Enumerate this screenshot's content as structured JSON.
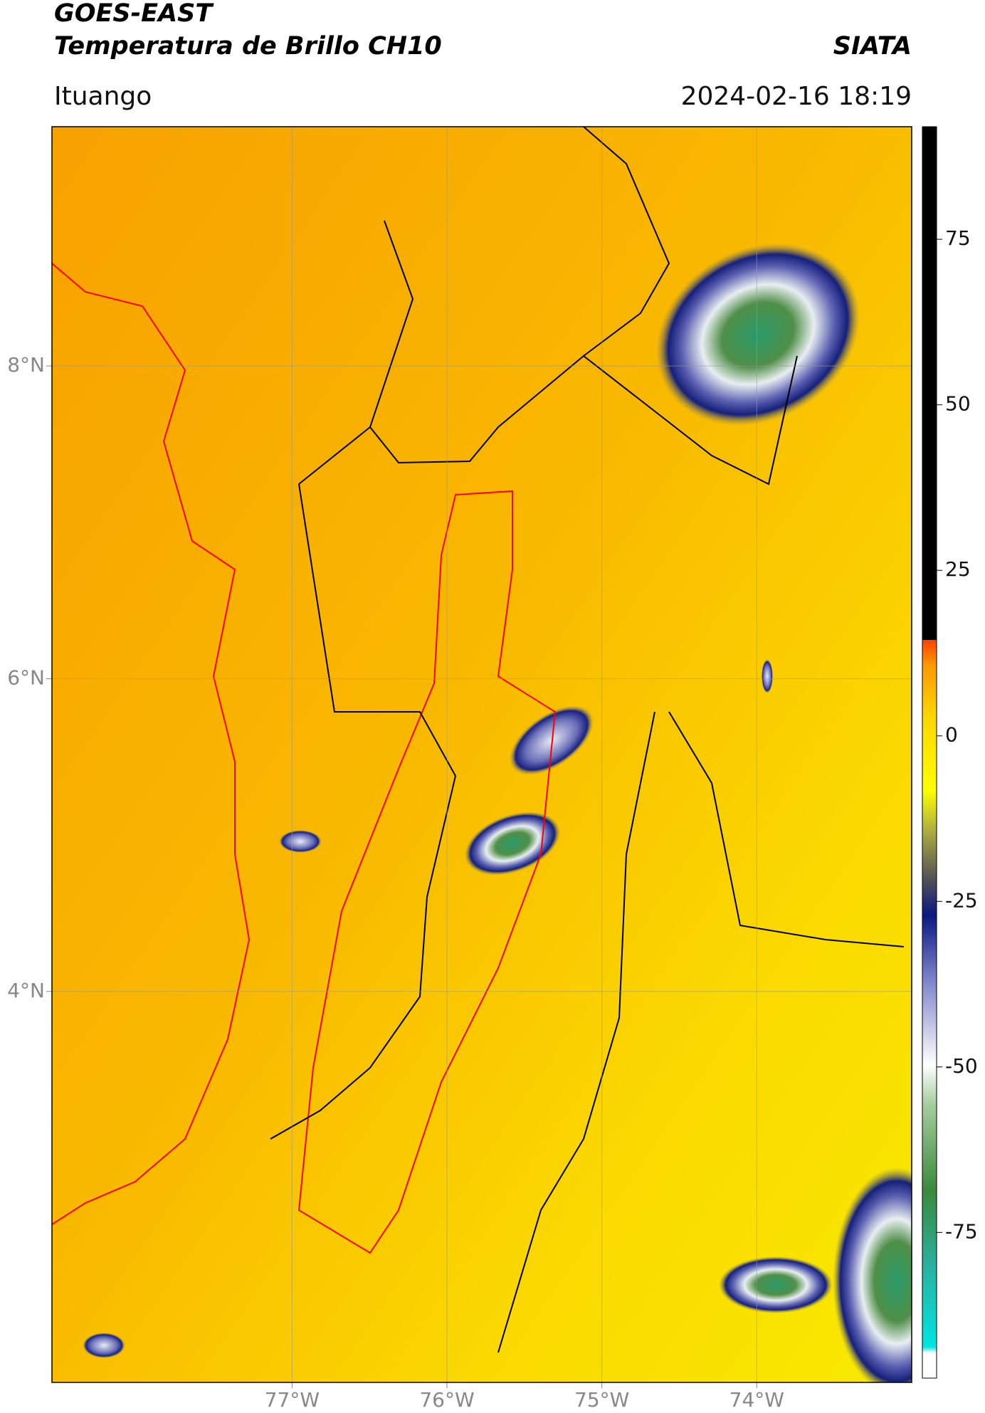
{
  "header": {
    "title": "GOES-EAST",
    "subtitle": "Temperatura de Brillo CH10",
    "source": "SIATA",
    "location": "Ituango",
    "datetime": "2024-02-16 18:19"
  },
  "map": {
    "xlim": [
      -78.55,
      -73.0
    ],
    "ylim": [
      1.5,
      9.53
    ],
    "xticks": [
      {
        "value": -77,
        "label": "77°W"
      },
      {
        "value": -76,
        "label": "76°W"
      },
      {
        "value": -75,
        "label": "75°W"
      },
      {
        "value": -74,
        "label": "74°W"
      }
    ],
    "yticks": [
      {
        "value": 8,
        "label": "8°N"
      },
      {
        "value": 6,
        "label": "6°N"
      },
      {
        "value": 4,
        "label": "4°N"
      }
    ],
    "grid": true
  },
  "colorbar": {
    "lim": [
      -97,
      92
    ],
    "ticks": [
      -75,
      -50,
      -25,
      0,
      25,
      50,
      75
    ]
  }
}
